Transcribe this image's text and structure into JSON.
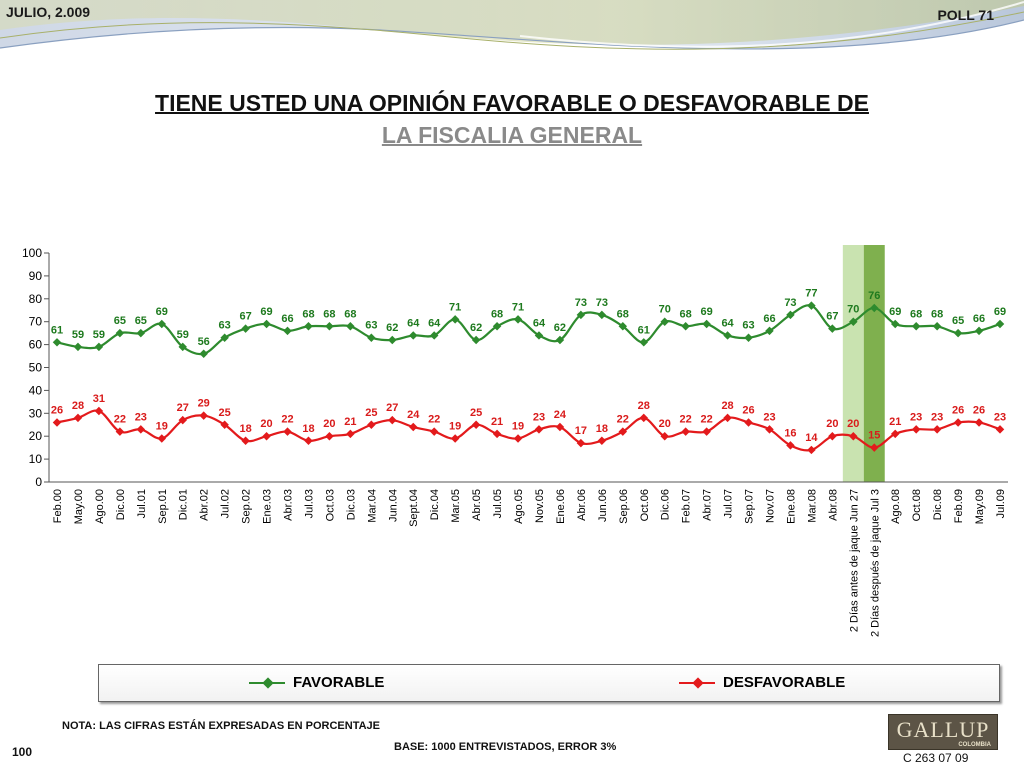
{
  "header": {
    "date": "JULIO, 2.009",
    "poll": "POLL 71",
    "title_line_1": "TIENE USTED UNA OPINIÓN FAVORABLE O DESFAVORABLE DE",
    "title_line_2": "LA FISCALIA GENERAL"
  },
  "footer": {
    "note": "NOTA: LAS CIFRAS ESTÁN EXPRESADAS EN PORCENTAJE",
    "base": "BASE: 1000 ENTREVISTADOS, ERROR 3%",
    "page_number": "100",
    "logo_text": "GALLUP",
    "logo_sub": "COLOMBIA",
    "code": "C 263 07 09"
  },
  "colors": {
    "favorable": "#2e8b2e",
    "desfavorable": "#e31a1c",
    "highlight_light": "#c9e3b0",
    "highlight_dark": "#7fb04e",
    "label_green": "#1e7a1e",
    "label_red": "#d91b1b"
  },
  "chart_data": {
    "type": "line",
    "categories": [
      "Feb.00",
      "May.00",
      "Ago.00",
      "Dic.00",
      "Jul.01",
      "Sep.01",
      "Dic.01",
      "Abr.02",
      "Jul.02",
      "Sep.02",
      "Ene.03",
      "Abr.03",
      "Jul.03",
      "Oct.03",
      "Dic.03",
      "Mar.04",
      "Jun.04",
      "Sept.04",
      "Dic.04",
      "Mar.05",
      "Abr.05",
      "Jul.05",
      "Ago.05",
      "Nov.05",
      "Ene.06",
      "Abr.06",
      "Jun.06",
      "Sep.06",
      "Oct.06",
      "Dic.06",
      "Feb.07",
      "Abr.07",
      "Jul.07",
      "Sep.07",
      "Nov.07",
      "Ene.08",
      "Mar.08",
      "Abr.08",
      "2 Días antes de jaque Jun 27",
      "2 Días después de jaque Jul 3",
      "Ago.08",
      "Oct.08",
      "Dic.08",
      "Feb.09",
      "May.09",
      "Jul.09"
    ],
    "series": [
      {
        "name": "FAVORABLE",
        "values": [
          61,
          59,
          59,
          65,
          65,
          69,
          59,
          56,
          63,
          67,
          69,
          66,
          68,
          68,
          68,
          63,
          62,
          64,
          64,
          71,
          62,
          68,
          71,
          64,
          62,
          73,
          73,
          68,
          61,
          70,
          68,
          69,
          64,
          63,
          66,
          73,
          77,
          67,
          70,
          76,
          69,
          68,
          68,
          65,
          66,
          69
        ]
      },
      {
        "name": "DESFAVORABLE",
        "values": [
          26,
          28,
          31,
          22,
          23,
          19,
          27,
          29,
          25,
          18,
          20,
          22,
          18,
          20,
          21,
          25,
          27,
          24,
          22,
          19,
          25,
          21,
          19,
          23,
          24,
          17,
          18,
          22,
          28,
          20,
          22,
          22,
          28,
          26,
          23,
          16,
          14,
          20,
          20,
          15,
          21,
          23,
          23,
          26,
          26,
          23
        ]
      }
    ],
    "highlighted_categories": [
      "2 Días antes de jaque Jun 27",
      "2 Días después de jaque Jul 3"
    ],
    "yticks": [
      0,
      10,
      20,
      30,
      40,
      50,
      60,
      70,
      80,
      90,
      100
    ],
    "ylim": [
      0,
      100
    ],
    "legend_position": "bottom",
    "grid": false
  }
}
